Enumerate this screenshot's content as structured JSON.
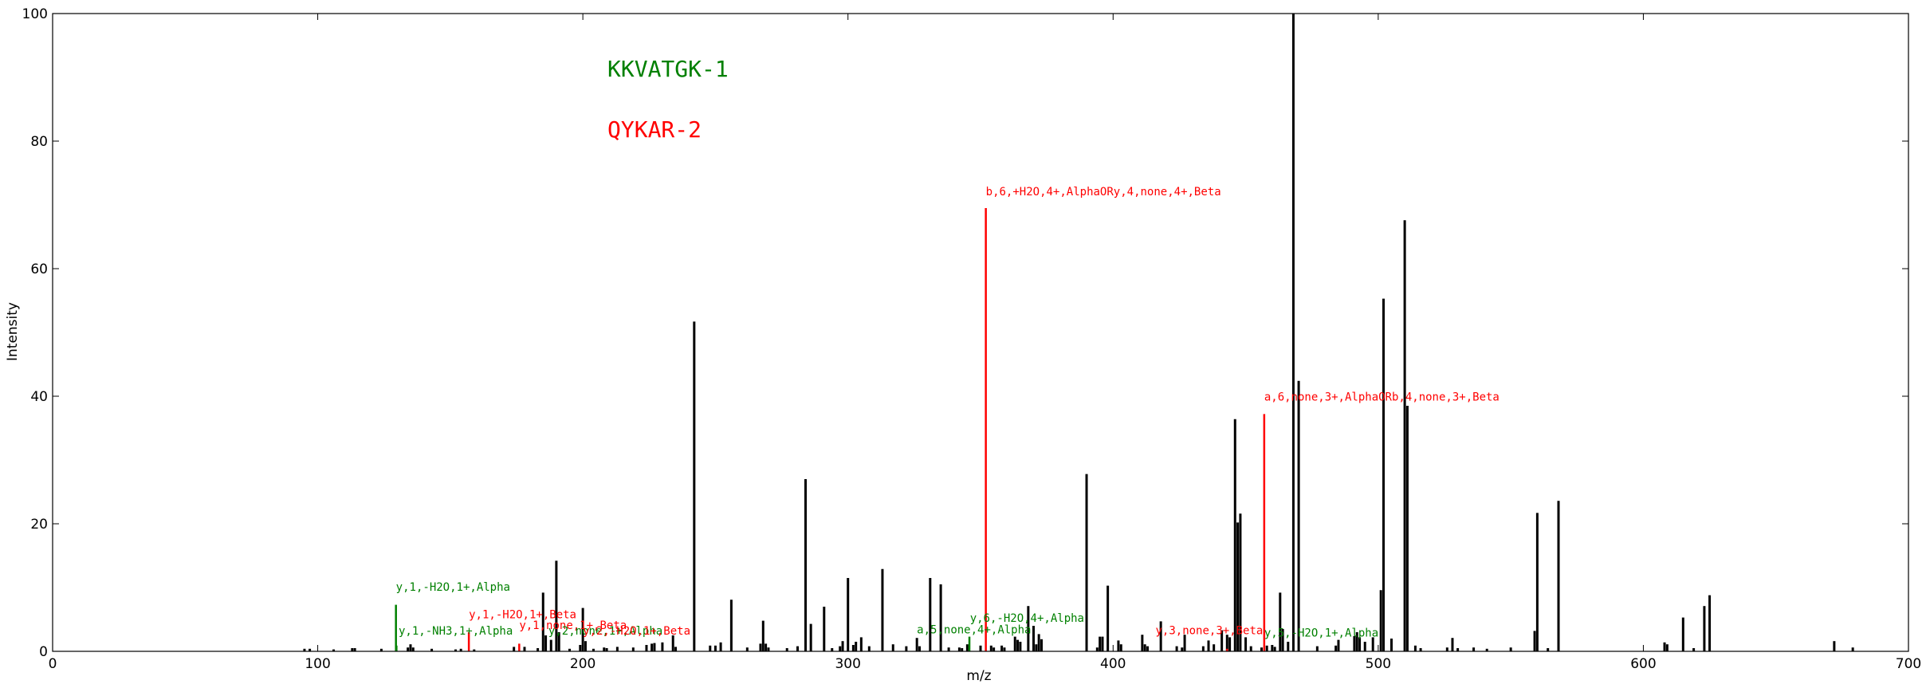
{
  "chart_data": {
    "type": "bar",
    "xlabel": "m/z",
    "ylabel": "Intensity",
    "xlim": [
      0,
      700
    ],
    "ylim": [
      0,
      100
    ],
    "x_ticks": [
      0,
      100,
      200,
      300,
      400,
      500,
      600,
      700
    ],
    "y_ticks": [
      0,
      20,
      40,
      60,
      80,
      100
    ],
    "grid": false,
    "colors": {
      "peptide1": "#008000",
      "peptide2": "#ff0000",
      "unmatched": "#000000"
    },
    "legend": [
      {
        "label": "KKVATGK-1",
        "color": "#008000"
      },
      {
        "label": "QYKAR-2",
        "color": "#ff0000"
      }
    ],
    "series": [
      {
        "peaks": [
          [
            95,
            0.4
          ],
          [
            97,
            0.4
          ],
          [
            106,
            0.3
          ],
          [
            113,
            0.5
          ],
          [
            114,
            0.5
          ],
          [
            124,
            0.4
          ],
          [
            134,
            0.6
          ],
          [
            135,
            1.1
          ],
          [
            136,
            0.6
          ],
          [
            143,
            0.4
          ],
          [
            152,
            0.3
          ],
          [
            154,
            0.4
          ],
          [
            159,
            0.3
          ],
          [
            174,
            0.7
          ],
          [
            178,
            0.7
          ],
          [
            183,
            0.5
          ],
          [
            185,
            9.2
          ],
          [
            186,
            2.5
          ],
          [
            188,
            1.8
          ],
          [
            190,
            14.2
          ],
          [
            191,
            3.0
          ],
          [
            195,
            0.4
          ],
          [
            199,
            1.0
          ],
          [
            200,
            6.8
          ],
          [
            201,
            1.6
          ],
          [
            204,
            0.4
          ],
          [
            208,
            0.6
          ],
          [
            209,
            0.5
          ],
          [
            213,
            0.7
          ],
          [
            219,
            0.6
          ],
          [
            224,
            1.0
          ],
          [
            226,
            1.2
          ],
          [
            227,
            1.3
          ],
          [
            230,
            1.4
          ],
          [
            234,
            2.5
          ],
          [
            235,
            0.7
          ],
          [
            242,
            51.7
          ],
          [
            248,
            0.9
          ],
          [
            250,
            0.9
          ],
          [
            252,
            1.4
          ],
          [
            256,
            8.1
          ],
          [
            262,
            0.6
          ],
          [
            267,
            1.2
          ],
          [
            268,
            4.8
          ],
          [
            269,
            1.2
          ],
          [
            270,
            0.6
          ],
          [
            277,
            0.5
          ],
          [
            281,
            0.8
          ],
          [
            284,
            27.0
          ],
          [
            286,
            4.3
          ],
          [
            291,
            7.0
          ],
          [
            294,
            0.5
          ],
          [
            297,
            0.8
          ],
          [
            298,
            1.6
          ],
          [
            300,
            11.5
          ],
          [
            302,
            1.0
          ],
          [
            303,
            1.5
          ],
          [
            305,
            2.2
          ],
          [
            308,
            0.8
          ],
          [
            313,
            12.9
          ],
          [
            317,
            1.1
          ],
          [
            322,
            0.8
          ],
          [
            326,
            2.1
          ],
          [
            327,
            0.8
          ],
          [
            331,
            11.5
          ],
          [
            335,
            10.5
          ],
          [
            338,
            0.6
          ],
          [
            342,
            0.6
          ],
          [
            343,
            0.5
          ],
          [
            345,
            1.1
          ],
          [
            350,
            0.9
          ],
          [
            354,
            0.9
          ],
          [
            355,
            0.6
          ],
          [
            358,
            0.9
          ],
          [
            359,
            0.6
          ],
          [
            363,
            2.3
          ],
          [
            364,
            1.8
          ],
          [
            365,
            1.5
          ],
          [
            368,
            7.1
          ],
          [
            370,
            4.0
          ],
          [
            371,
            1.1
          ],
          [
            372,
            2.7
          ],
          [
            373,
            1.9
          ],
          [
            390,
            27.8
          ],
          [
            394,
            0.6
          ],
          [
            395,
            2.3
          ],
          [
            396,
            2.3
          ],
          [
            398,
            10.3
          ],
          [
            402,
            1.7
          ],
          [
            403,
            1.1
          ],
          [
            411,
            2.6
          ],
          [
            412,
            1.1
          ],
          [
            413,
            0.8
          ],
          [
            418,
            4.7
          ],
          [
            424,
            0.8
          ],
          [
            426,
            0.6
          ],
          [
            427,
            2.6
          ],
          [
            434,
            0.8
          ],
          [
            436,
            1.7
          ],
          [
            438,
            1.1
          ],
          [
            441,
            3.3
          ],
          [
            443,
            2.6
          ],
          [
            444,
            2.2
          ],
          [
            446,
            36.4
          ],
          [
            447,
            20.2
          ],
          [
            448,
            21.6
          ],
          [
            450,
            2.2
          ],
          [
            452,
            0.8
          ],
          [
            456,
            0.6
          ],
          [
            458,
            0.9
          ],
          [
            460,
            1.0
          ],
          [
            461,
            0.7
          ],
          [
            463,
            9.2
          ],
          [
            464,
            3.5
          ],
          [
            466,
            1.5
          ],
          [
            468,
            100.0
          ],
          [
            470,
            42.4
          ],
          [
            477,
            0.8
          ],
          [
            484,
            0.9
          ],
          [
            485,
            1.8
          ],
          [
            491,
            2.4
          ],
          [
            492,
            3.0
          ],
          [
            493,
            2.2
          ],
          [
            495,
            1.5
          ],
          [
            498,
            2.2
          ],
          [
            501,
            9.6
          ],
          [
            502,
            55.3
          ],
          [
            505,
            2.0
          ],
          [
            510,
            67.6
          ],
          [
            511,
            38.5
          ],
          [
            514,
            0.9
          ],
          [
            516,
            0.5
          ],
          [
            526,
            0.6
          ],
          [
            528,
            2.1
          ],
          [
            530,
            0.5
          ],
          [
            536,
            0.6
          ],
          [
            541,
            0.4
          ],
          [
            550,
            0.6
          ],
          [
            559,
            3.2
          ],
          [
            560,
            21.7
          ],
          [
            564,
            0.5
          ],
          [
            568,
            23.6
          ],
          [
            608,
            1.4
          ],
          [
            609,
            1.1
          ],
          [
            615,
            5.3
          ],
          [
            619,
            0.5
          ],
          [
            623,
            7.1
          ],
          [
            625,
            8.8
          ],
          [
            672,
            1.6
          ],
          [
            679,
            0.6
          ]
        ]
      },
      {
        "peaks": [
          [
            129.5,
            7.3
          ],
          [
            129.7,
            0.9
          ],
          [
            345.8,
            2.3
          ]
        ]
      },
      {
        "peaks": [
          [
            157,
            3.0
          ],
          [
            176,
            1.2
          ],
          [
            352,
            69.5
          ],
          [
            443,
            0.4
          ],
          [
            457,
            37.2
          ]
        ]
      }
    ],
    "annotations": [
      {
        "text": "y,1,-H2O,1+,Alpha",
        "x": 129.5,
        "y": 9.5,
        "color": "#008000"
      },
      {
        "text": "y,1,-NH3,1+,Alpha",
        "x": 130.5,
        "y": 2.6,
        "color": "#008000"
      },
      {
        "text": "y,1,-H2O,1+,Beta",
        "x": 157,
        "y": 5.2,
        "color": "#ff0000"
      },
      {
        "text": "y,1,none,1+,Beta",
        "x": 176,
        "y": 3.5,
        "color": "#ff0000"
      },
      {
        "text": "y,2,none,1+,Alpha",
        "x": 187,
        "y": 2.6,
        "color": "#008000"
      },
      {
        "text": "y,2,-H2O,1+,Beta",
        "x": 200,
        "y": 2.6,
        "color": "#ff0000"
      },
      {
        "text": "a,5,none,4+,Alpha",
        "x": 326,
        "y": 2.8,
        "color": "#008000"
      },
      {
        "text": "y,6,-H2O,4+,Alpha",
        "x": 346,
        "y": 4.6,
        "color": "#008000"
      },
      {
        "text": "b,6,+H2O,4+,AlphaORy,4,none,4+,Beta",
        "x": 352,
        "y": 71.5,
        "color": "#ff0000"
      },
      {
        "text": "y,3,none,3+,Beta",
        "x": 416,
        "y": 2.7,
        "color": "#ff0000"
      },
      {
        "text": "y,5,-H2O,1+,Alpha",
        "x": 457,
        "y": 2.3,
        "color": "#008000"
      },
      {
        "text": "a,6,none,3+,AlphaORb,4,none,3+,Beta",
        "x": 457,
        "y": 39.3,
        "color": "#ff0000"
      }
    ]
  }
}
